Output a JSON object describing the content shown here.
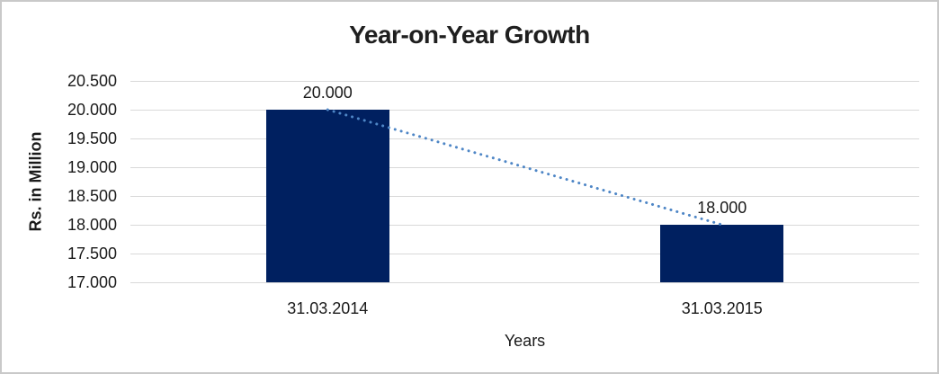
{
  "chart_data": {
    "type": "bar",
    "title": "Year-on-Year Growth",
    "xlabel": "Years",
    "ylabel": "Rs. in Million",
    "categories": [
      "31.03.2014",
      "31.03.2015"
    ],
    "values": [
      20000,
      18000
    ],
    "data_labels": [
      "20.000",
      "18.000"
    ],
    "ylim": [
      17000,
      20500
    ],
    "ytick_step": 500,
    "ytick_labels": [
      "20.500",
      "20.000",
      "19.500",
      "19.000",
      "18.500",
      "18.000",
      "17.500",
      "17.000"
    ],
    "grid": true,
    "legend": false,
    "colors": {
      "bar": "#002060",
      "trendline": "#4e86c6",
      "gridline": "#d9d9d9",
      "text": "#1a1a1a"
    },
    "trendline": {
      "style": "dotted",
      "connects": [
        "31.03.2014",
        "31.03.2015"
      ]
    }
  }
}
